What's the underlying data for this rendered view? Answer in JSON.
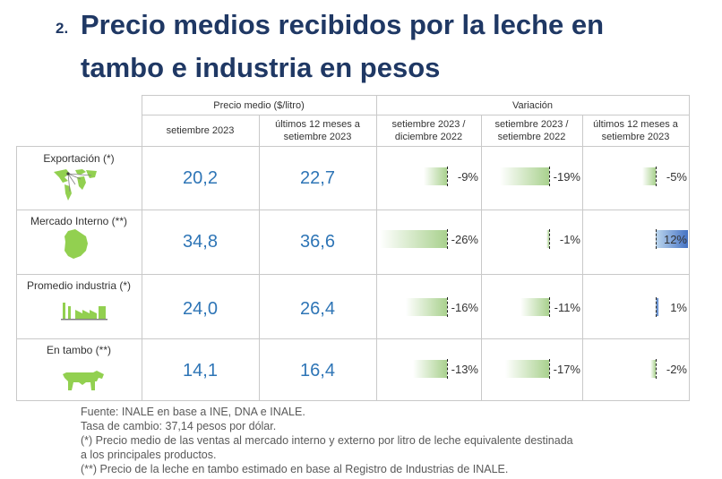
{
  "title": {
    "number": "2.",
    "line1": "Precio medios recibidos por la leche en",
    "line2": "tambo e industria en pesos"
  },
  "headers": {
    "group_price": "Precio medio ($/litro)",
    "group_variation": "Variación",
    "col1": "setiembre 2023",
    "col2_a": "últimos 12 meses a",
    "col2_b": "setiembre 2023",
    "col3_a": "setiembre 2023 /",
    "col3_b": "diciembre 2022",
    "col4_a": "setiembre 2023 /",
    "col4_b": "setiembre 2022",
    "col5_a": "últimos 12 meses a",
    "col5_b": "setiembre 2023"
  },
  "rows": [
    {
      "label": "Exportación (*)",
      "icon": "world-map-icon",
      "price_sep": "20,2",
      "price_12m": "22,7",
      "var_dic": "-9%",
      "var_dic_value": -9,
      "var_sep": "-19%",
      "var_sep_value": -19,
      "var_12m": "-5%",
      "var_12m_value": -5
    },
    {
      "label": "Mercado Interno (**)",
      "icon": "uruguay-map-icon",
      "price_sep": "34,8",
      "price_12m": "36,6",
      "var_dic": "-26%",
      "var_dic_value": -26,
      "var_sep": "-1%",
      "var_sep_value": -1,
      "var_12m": "12%",
      "var_12m_value": 12
    },
    {
      "label": "Promedio industria (*)",
      "icon": "factory-icon",
      "price_sep": "24,0",
      "price_12m": "26,4",
      "var_dic": "-16%",
      "var_dic_value": -16,
      "var_sep": "-11%",
      "var_sep_value": -11,
      "var_12m": "1%",
      "var_12m_value": 1
    },
    {
      "label": "En tambo (**)",
      "icon": "cow-icon",
      "price_sep": "14,1",
      "price_12m": "16,4",
      "var_dic": "-13%",
      "var_dic_value": -13,
      "var_sep": "-17%",
      "var_sep_value": -17,
      "var_12m": "-2%",
      "var_12m_value": -2
    }
  ],
  "colors": {
    "title": "#1f3864",
    "value": "#2e75b6",
    "negative_bar": "#a9d18e",
    "positive_bar": "#4472c4",
    "icon_green": "#92d050"
  },
  "notes": {
    "line1": "Fuente: INALE en base a INE, DNA e INALE.",
    "line2": "Tasa de cambio: 37,14 pesos por dólar.",
    "line3": "(*) Precio medio de las ventas al mercado interno y externo por litro de leche equivalente destinada",
    "line4": "a los principales productos.",
    "line5": "(**) Precio de la leche en tambo estimado en base al Registro de Industrias de INALE."
  }
}
